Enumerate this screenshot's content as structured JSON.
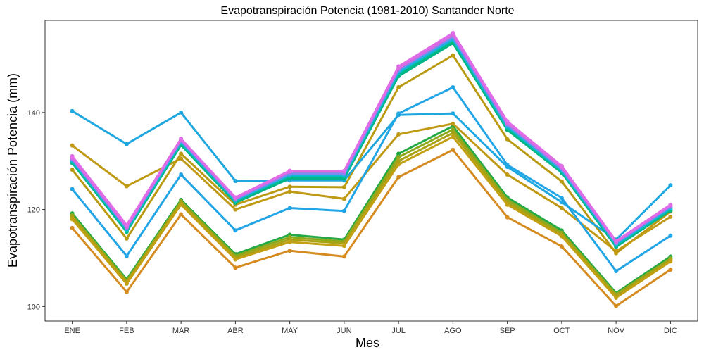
{
  "chart_data": {
    "type": "line",
    "title": "Evapotranspiración Potencia (1981-2010)  Santander Norte",
    "xlabel": "Mes",
    "ylabel": "Evapotranspiración Potencia  (mm)",
    "categories": [
      "ENE",
      "FEB",
      "MAR",
      "ABR",
      "MAY",
      "JUN",
      "JUL",
      "AGO",
      "SEP",
      "OCT",
      "NOV",
      "DIC"
    ],
    "ylim": [
      97,
      159
    ],
    "yticks": [
      100,
      120,
      140
    ],
    "grid": false,
    "legend": "none",
    "series": [
      {
        "color": "#E06CE8",
        "values": [
          131.0,
          116.8,
          134.6,
          122.5,
          128.0,
          128.0,
          149.5,
          156.4,
          138.2,
          129.0,
          113.5,
          121.0
        ]
      },
      {
        "color": "#D66AE0",
        "values": [
          130.6,
          116.4,
          134.4,
          122.3,
          127.8,
          127.8,
          149.1,
          156.0,
          137.8,
          128.7,
          113.3,
          120.8
        ]
      },
      {
        "color": "#7B8CF0",
        "values": [
          130.4,
          116.2,
          134.2,
          122.1,
          127.4,
          127.4,
          148.8,
          155.6,
          137.5,
          128.4,
          113.1,
          120.6
        ]
      },
      {
        "color": "#21AEE0",
        "values": [
          130.2,
          116.0,
          134.0,
          122.0,
          127.2,
          127.2,
          148.5,
          155.2,
          137.2,
          128.2,
          112.9,
          120.4
        ]
      },
      {
        "color": "#00BFC4",
        "values": [
          130.0,
          115.8,
          133.8,
          121.8,
          127.0,
          127.0,
          148.2,
          155.0,
          137.0,
          128.0,
          112.7,
          120.2
        ]
      },
      {
        "color": "#00BA80",
        "values": [
          129.8,
          115.6,
          133.5,
          121.6,
          126.8,
          126.8,
          147.9,
          154.6,
          136.7,
          127.8,
          112.5,
          120.0
        ]
      },
      {
        "color": "#00B38A",
        "values": [
          129.6,
          115.4,
          133.3,
          121.4,
          126.4,
          126.4,
          147.5,
          154.3,
          136.4,
          127.6,
          112.3,
          119.8
        ]
      },
      {
        "color": "#1FA8E0",
        "values": [
          140.3,
          133.5,
          140.0,
          125.9,
          126.0,
          126.0,
          139.5,
          139.8,
          128.8,
          121.5,
          113.8,
          125.0
        ]
      },
      {
        "color": "#22A5E6",
        "values": [
          124.2,
          110.4,
          127.2,
          115.7,
          120.3,
          119.7,
          139.8,
          145.2,
          129.2,
          122.4,
          107.3,
          114.6
        ]
      },
      {
        "color": "#C09A14",
        "values": [
          133.2,
          124.8,
          130.5,
          120.0,
          123.7,
          122.2,
          135.5,
          137.7,
          127.2,
          120.3,
          111.4,
          118.5
        ]
      },
      {
        "color": "#B99A10",
        "values": [
          128.2,
          114.0,
          131.5,
          121.0,
          124.7,
          124.6,
          145.2,
          151.8,
          134.5,
          125.8,
          111.0,
          119.6
        ]
      },
      {
        "color": "#C3A012",
        "values": [
          118.0,
          104.7,
          121.0,
          109.7,
          113.3,
          112.5,
          129.3,
          135.0,
          121.0,
          114.5,
          101.8,
          109.3
        ]
      },
      {
        "color": "#A9A215",
        "values": [
          118.5,
          105.0,
          121.4,
          110.0,
          113.8,
          113.0,
          130.0,
          135.8,
          121.5,
          114.8,
          102.2,
          109.6
        ]
      },
      {
        "color": "#8DA91B",
        "values": [
          118.8,
          105.3,
          121.7,
          110.4,
          114.3,
          113.4,
          130.8,
          136.5,
          122.0,
          115.2,
          102.5,
          109.9
        ]
      },
      {
        "color": "#24AA44",
        "values": [
          119.2,
          105.6,
          122.0,
          110.8,
          114.8,
          113.8,
          131.5,
          137.2,
          122.5,
          115.7,
          102.8,
          110.3
        ]
      },
      {
        "color": "#D58B1F",
        "values": [
          116.2,
          103.0,
          119.0,
          108.0,
          111.5,
          110.3,
          126.7,
          132.3,
          118.4,
          112.4,
          100.1,
          107.6
        ]
      }
    ]
  }
}
